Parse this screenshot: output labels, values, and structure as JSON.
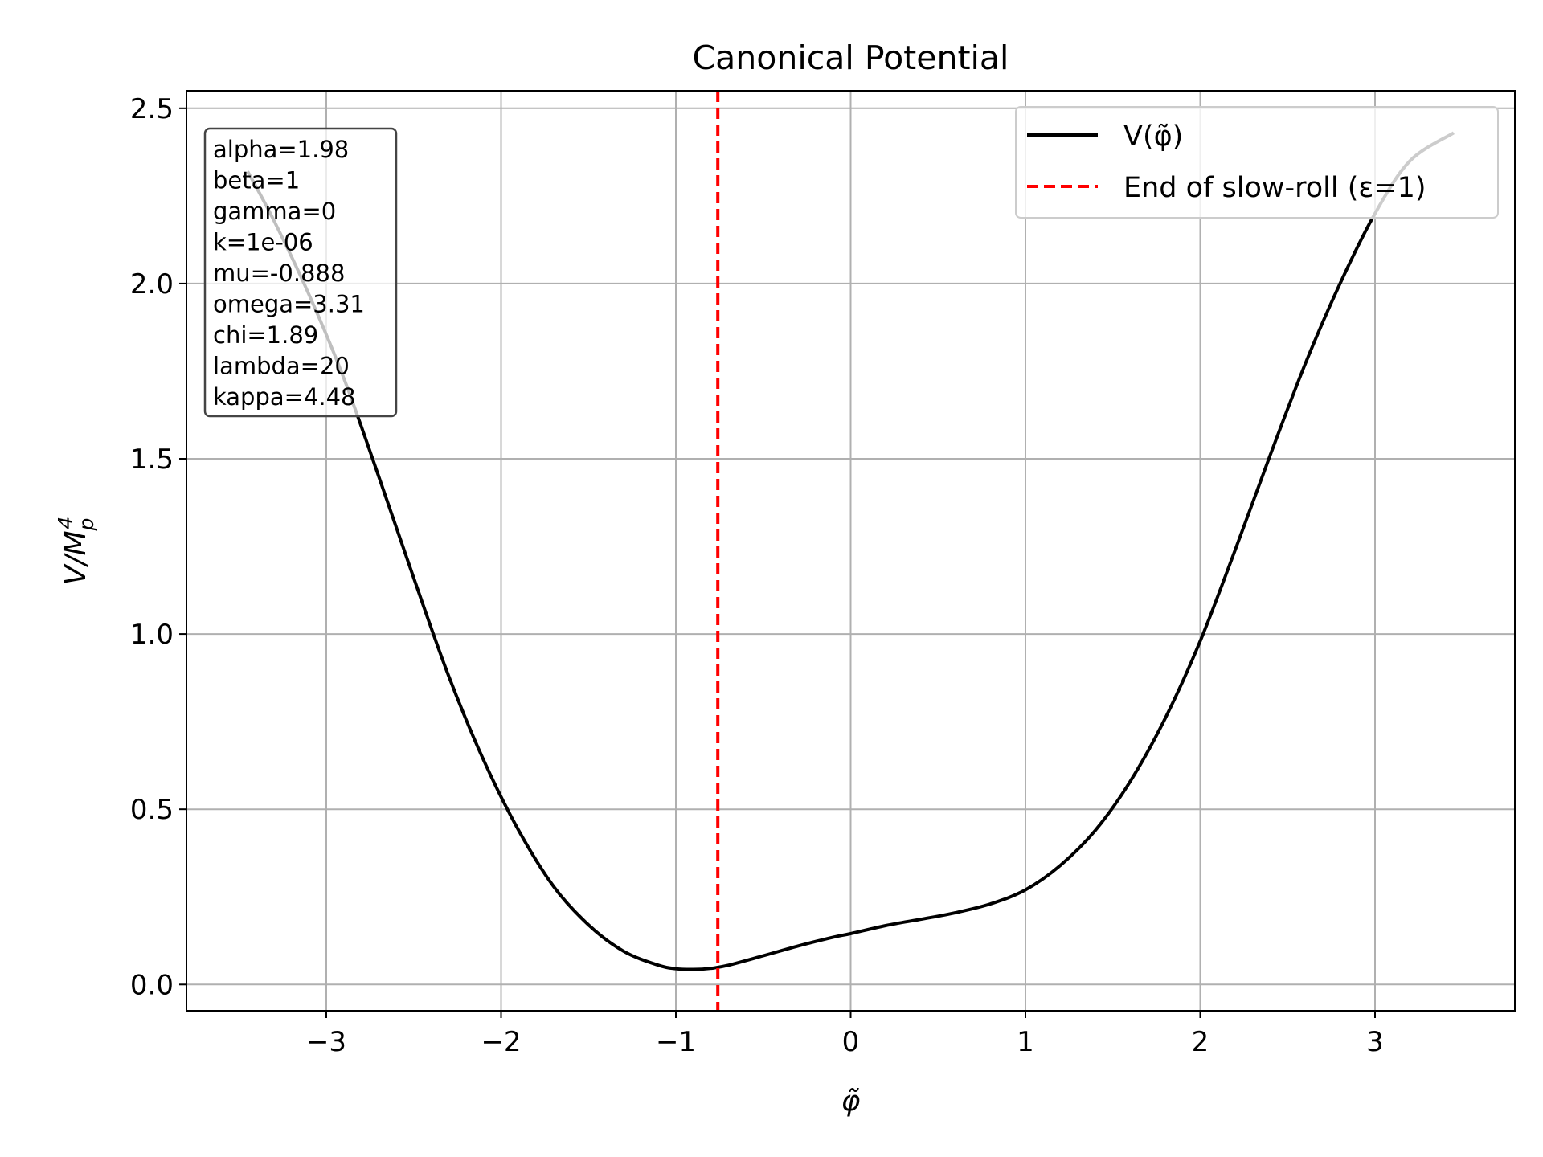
{
  "chart_data": {
    "type": "line",
    "title": "Canonical Potential",
    "xlabel": "φ̃",
    "ylabel": "V/M",
    "ylabel_sub": "p",
    "ylabel_sup": "4",
    "xlim": [
      -3.8,
      3.8
    ],
    "ylim": [
      -0.075,
      2.55
    ],
    "x_ticks": [
      -3,
      -2,
      -1,
      0,
      1,
      2,
      3
    ],
    "x_tick_labels": [
      "−3",
      "−2",
      "−1",
      "0",
      "1",
      "2",
      "3"
    ],
    "y_ticks": [
      0.0,
      0.5,
      1.0,
      1.5,
      2.0,
      2.5
    ],
    "y_tick_labels": [
      "0.0",
      "0.5",
      "1.0",
      "1.5",
      "2.0",
      "2.5"
    ],
    "grid": true,
    "legend_position": "top-right",
    "series": [
      {
        "name": "V(φ̃)",
        "color": "#000000",
        "style": "solid",
        "x": [
          -3.45,
          -3.3,
          -3.1,
          -2.9,
          -2.7,
          -2.5,
          -2.3,
          -2.1,
          -1.9,
          -1.7,
          -1.5,
          -1.3,
          -1.1,
          -1.0,
          -0.9,
          -0.8,
          -0.7,
          -0.5,
          -0.3,
          -0.1,
          0.0,
          0.2,
          0.4,
          0.6,
          0.8,
          1.0,
          1.2,
          1.4,
          1.6,
          1.8,
          2.0,
          2.2,
          2.4,
          2.6,
          2.8,
          3.0,
          3.2,
          3.45
        ],
        "y": [
          2.32,
          2.18,
          1.97,
          1.73,
          1.45,
          1.16,
          0.88,
          0.64,
          0.44,
          0.28,
          0.17,
          0.095,
          0.055,
          0.045,
          0.043,
          0.046,
          0.055,
          0.082,
          0.11,
          0.135,
          0.145,
          0.168,
          0.186,
          0.205,
          0.23,
          0.27,
          0.34,
          0.44,
          0.58,
          0.76,
          0.98,
          1.24,
          1.51,
          1.77,
          2.0,
          2.2,
          2.35,
          2.43
        ]
      },
      {
        "name": "End of slow-roll (ε=1)",
        "color": "#ff0000",
        "style": "dashed",
        "vline_x": -0.76
      }
    ],
    "annotation_box": {
      "lines": [
        "alpha=1.98",
        "beta=1",
        "gamma=0",
        "k=1e-06",
        "mu=-0.888",
        "omega=3.31",
        "chi=1.89",
        "lambda=20",
        "kappa=4.48"
      ]
    }
  }
}
